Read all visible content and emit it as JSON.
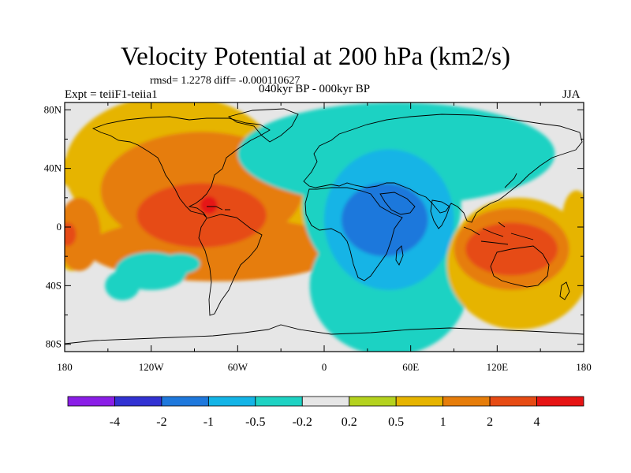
{
  "chart_data": {
    "type": "heatmap",
    "title": "Velocity Potential at 200 hPa (km2/s)",
    "stats_text": "rmsd= 1.2278 diff= -0.000110627",
    "experiment_label": "Expt = teiiF1-teiia1",
    "period_label": "040kyr BP - 000kyr BP",
    "season_label": "JJA",
    "x_ticks": [
      {
        "value": -180,
        "label": "180"
      },
      {
        "value": -120,
        "label": "120W"
      },
      {
        "value": -60,
        "label": "60W"
      },
      {
        "value": 0,
        "label": "0"
      },
      {
        "value": 60,
        "label": "60E"
      },
      {
        "value": 120,
        "label": "120E"
      },
      {
        "value": 180,
        "label": "180"
      }
    ],
    "y_ticks": [
      {
        "value": 80,
        "label": "80N"
      },
      {
        "value": 40,
        "label": "40N"
      },
      {
        "value": 0,
        "label": "0"
      },
      {
        "value": -40,
        "label": "40S"
      },
      {
        "value": -80,
        "label": "80S"
      }
    ],
    "xlim": [
      -180,
      180
    ],
    "ylim": [
      -85,
      85
    ],
    "contour_levels": [
      "-4",
      "-2",
      "-1",
      "-0.5",
      "-0.2",
      "0.2",
      "0.5",
      "1",
      "2",
      "4"
    ],
    "colorbar_colors": [
      "#8a1ee6",
      "#3232d2",
      "#1e78dc",
      "#14b4e6",
      "#1ed2c3",
      "#e6e6e6",
      "#b4d21e",
      "#e6b400",
      "#e67d0a",
      "#e64b14",
      "#e61414"
    ],
    "no_data_color": "#e6e6e6",
    "regions": [
      {
        "value": 0.5,
        "lon": -105,
        "lat": 40,
        "rlon": 75,
        "rlat": 50
      },
      {
        "value": 0.5,
        "lon": -75,
        "lat": 10,
        "rlon": 95,
        "rlat": 30
      },
      {
        "value": 0.5,
        "lon": -172,
        "lat": 38,
        "rlon": 12,
        "rlat": 12
      },
      {
        "value": 0.5,
        "lon": -175,
        "lat": -10,
        "rlon": 12,
        "rlat": 20
      },
      {
        "value": 1,
        "lon": -85,
        "lat": 25,
        "rlon": 70,
        "rlat": 40
      },
      {
        "value": 1,
        "lon": -75,
        "lat": -15,
        "rlon": 90,
        "rlat": 22
      },
      {
        "value": 1,
        "lon": -170,
        "lat": -5,
        "rlon": 15,
        "rlat": 25
      },
      {
        "value": 2,
        "lon": -85,
        "lat": 8,
        "rlon": 45,
        "rlat": 22
      },
      {
        "value": 2,
        "lon": -178,
        "lat": -5,
        "rlon": 6,
        "rlat": 8
      },
      {
        "value": 4,
        "lon": -80,
        "lat": 15,
        "rlon": 6,
        "rlat": 6
      },
      {
        "value": -0.2,
        "lon": -120,
        "lat": -30,
        "rlon": 25,
        "rlat": 13
      },
      {
        "value": -0.5,
        "lon": -140,
        "lat": -40,
        "rlon": 12,
        "rlat": 10
      },
      {
        "value": -0.5,
        "lon": -100,
        "lat": -25,
        "rlon": 14,
        "rlat": 7
      },
      {
        "value": -0.2,
        "lon": 50,
        "lat": 50,
        "rlon": 110,
        "rlat": 35
      },
      {
        "value": -0.2,
        "lon": 45,
        "lat": -40,
        "rlon": 55,
        "rlat": 48
      },
      {
        "value": -0.5,
        "lon": 40,
        "lat": 15,
        "rlon": 55,
        "rlat": 55
      },
      {
        "value": -0.5,
        "lon": 40,
        "lat": -45,
        "rlon": 45,
        "rlat": 25
      },
      {
        "value": -1,
        "lon": 45,
        "lat": 5,
        "rlon": 45,
        "rlat": 48
      },
      {
        "value": -2,
        "lon": 42,
        "lat": 5,
        "rlon": 30,
        "rlat": 25
      },
      {
        "value": 0.5,
        "lon": 135,
        "lat": -25,
        "rlon": 50,
        "rlat": 45
      },
      {
        "value": 0.5,
        "lon": 175,
        "lat": 5,
        "rlon": 10,
        "rlat": 20
      },
      {
        "value": 1,
        "lon": 130,
        "lat": -15,
        "rlon": 40,
        "rlat": 28
      },
      {
        "value": 2,
        "lon": 130,
        "lat": -15,
        "rlon": 32,
        "rlat": 18
      }
    ]
  }
}
